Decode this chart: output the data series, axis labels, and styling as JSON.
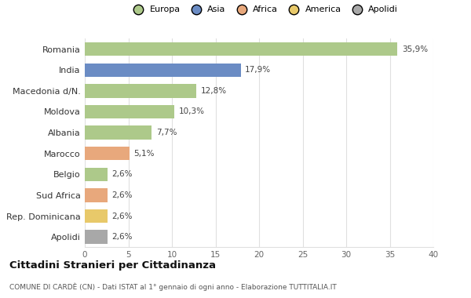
{
  "categories": [
    "Romania",
    "India",
    "Macedonia d/N.",
    "Moldova",
    "Albania",
    "Marocco",
    "Belgio",
    "Sud Africa",
    "Rep. Dominicana",
    "Apolidi"
  ],
  "values": [
    35.9,
    17.9,
    12.8,
    10.3,
    7.7,
    5.1,
    2.6,
    2.6,
    2.6,
    2.6
  ],
  "colors": [
    "#adc98a",
    "#6b8cc4",
    "#adc98a",
    "#adc98a",
    "#adc98a",
    "#e8a87c",
    "#adc98a",
    "#e8a87c",
    "#e8c96a",
    "#a8a8a8"
  ],
  "labels": [
    "35,9%",
    "17,9%",
    "12,8%",
    "10,3%",
    "7,7%",
    "5,1%",
    "2,6%",
    "2,6%",
    "2,6%",
    "2,6%"
  ],
  "legend_labels": [
    "Europa",
    "Asia",
    "Africa",
    "America",
    "Apolidi"
  ],
  "legend_colors": [
    "#adc98a",
    "#6b8cc4",
    "#e8a87c",
    "#e8c96a",
    "#a8a8a8"
  ],
  "title": "Cittadini Stranieri per Cittadinanza",
  "subtitle": "COMUNE DI CARDÈ (CN) - Dati ISTAT al 1° gennaio di ogni anno - Elaborazione TUTTITALIA.IT",
  "xlim": [
    0,
    40
  ],
  "xticks": [
    0,
    5,
    10,
    15,
    20,
    25,
    30,
    35,
    40
  ],
  "background_color": "#ffffff",
  "grid_color": "#e0e0e0"
}
